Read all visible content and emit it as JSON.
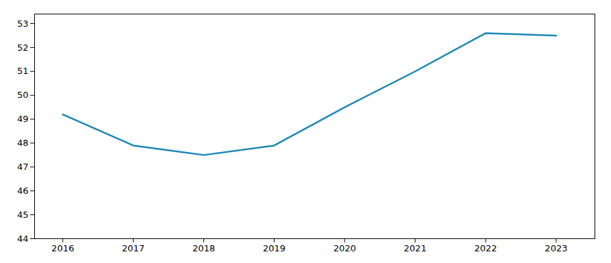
{
  "chart_data": {
    "type": "line",
    "x": [
      2016,
      2017,
      2018,
      2019,
      2020,
      2021,
      2022,
      2023
    ],
    "values": [
      49.2,
      47.9,
      47.5,
      47.9,
      49.5,
      51.0,
      52.6,
      52.5
    ],
    "color": "#1a87b8",
    "xlim": [
      2015.6,
      2023.55
    ],
    "xticks": [
      2016,
      2017,
      2018,
      2019,
      2020,
      2021,
      2022,
      2023
    ],
    "ylim": [
      44,
      53.4
    ],
    "yticks": [
      44,
      45,
      46,
      47,
      48,
      49,
      50,
      51,
      52,
      53
    ],
    "grid": false
  }
}
